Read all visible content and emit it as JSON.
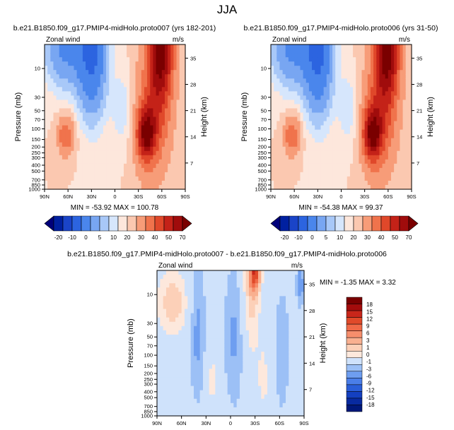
{
  "page_title": "JJA",
  "colors": {
    "neg": [
      "#00007a",
      "#0020a0",
      "#1a44c8",
      "#2c64e0",
      "#4a86ec",
      "#78a6f2",
      "#a8c8f8",
      "#d6e6fc"
    ],
    "pos": [
      "#fde7dc",
      "#fbc8b0",
      "#f79c78",
      "#f0734c",
      "#e0482a",
      "#c42218",
      "#a00c0c",
      "#7a0000"
    ],
    "diff_neg": [
      "#cfe2fb",
      "#9cc0f6",
      "#6e9ef0",
      "#4a7ee8",
      "#2a5ed8",
      "#1440c0",
      "#082aa0",
      "#00187a"
    ],
    "diff_pos": [
      "#fde8dc",
      "#fcd0b8",
      "#f9b090",
      "#f68e6c",
      "#f06a48",
      "#e04a2a",
      "#c8261a",
      "#a40c0c",
      "#7a0000"
    ]
  },
  "chart_data": [
    {
      "type": "heatmap",
      "name": "top-left",
      "title": "b.e21.B1850.f09_g17.PMIP4-midHolo.proto007 (yrs 182-201)",
      "left_label": "Zonal wind",
      "right_label": "m/s",
      "ylabel": "Pressure (mb)",
      "ylabel_right": "Height (km)",
      "x_ticks": [
        "90N",
        "60N",
        "30N",
        "0",
        "30S",
        "60S",
        "90S"
      ],
      "y_ticks": [
        "10",
        "30",
        "50",
        "70",
        "100",
        "150",
        "200",
        "250",
        "300",
        "400",
        "500",
        "700",
        "850",
        "1000"
      ],
      "height_ticks": [
        "35",
        "28",
        "21",
        "14",
        "7"
      ],
      "minmax": "MIN = -53.92   MAX = 100.78",
      "colorbar_labels": [
        "-20",
        "-10",
        "0",
        "5",
        "10",
        "20",
        "30",
        "40",
        "50",
        "70"
      ]
    },
    {
      "type": "heatmap",
      "name": "top-right",
      "title": "b.e21.B1850.f09_g17.PMIP4-midHolo.proto006 (yrs 31-50)",
      "left_label": "Zonal wind",
      "right_label": "m/s",
      "ylabel": "Pressure (mb)",
      "ylabel_right": "Height (km)",
      "x_ticks": [
        "90N",
        "60N",
        "30N",
        "0",
        "30S",
        "60S",
        "90S"
      ],
      "y_ticks": [
        "10",
        "30",
        "50",
        "70",
        "100",
        "150",
        "200",
        "250",
        "300",
        "400",
        "500",
        "700",
        "850",
        "1000"
      ],
      "height_ticks": [
        "35",
        "28",
        "21",
        "14",
        "7"
      ],
      "minmax": "MIN = -54.38   MAX = 99.37",
      "colorbar_labels": [
        "-20",
        "-10",
        "0",
        "5",
        "10",
        "20",
        "30",
        "40",
        "50",
        "70"
      ]
    },
    {
      "type": "heatmap",
      "name": "difference",
      "title": "b.e21.B1850.f09_g17.PMIP4-midHolo.proto007 - b.e21.B1850.f09_g17.PMIP4-midHolo.proto006",
      "left_label": "Zonal wind",
      "right_label": "m/s",
      "ylabel": "Pressure (mb)",
      "ylabel_right": "Height (km)",
      "x_ticks": [
        "90N",
        "60N",
        "30N",
        "0",
        "30S",
        "60S",
        "90S"
      ],
      "y_ticks": [
        "10",
        "30",
        "50",
        "70",
        "100",
        "150",
        "200",
        "250",
        "300",
        "400",
        "500",
        "700",
        "850",
        "1000"
      ],
      "height_ticks": [
        "35",
        "28",
        "21",
        "14",
        "7"
      ],
      "minmax": "MIN = -1.35   MAX =  3.32",
      "colorbar_labels": [
        "18",
        "15",
        "12",
        "9",
        "6",
        "3",
        "1",
        "0",
        "-1",
        "-3",
        "-6",
        "-9",
        "-12",
        "-15",
        "-18"
      ]
    }
  ]
}
